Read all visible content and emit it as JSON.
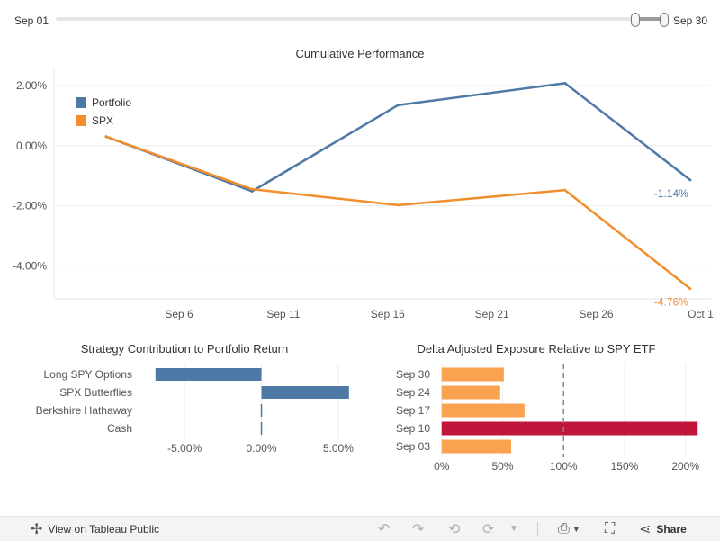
{
  "date_filter": {
    "start_label": "Sep 01",
    "end_label": "Sep 30"
  },
  "colors": {
    "portfolio": "#4e79a7",
    "spx": "#f28e2b",
    "crimson": "#c0163b",
    "light_orange": "#f9a24f"
  },
  "chart_data": [
    {
      "type": "line",
      "title": "Cumulative Performance",
      "x_ticks": [
        "Sep 6",
        "Sep 11",
        "Sep 16",
        "Sep 21",
        "Sep 26",
        "Oct 1"
      ],
      "y_ticks": [
        "2.00%",
        "0.00%",
        "-2.00%",
        "-4.00%"
      ],
      "ylim": [
        -5.1,
        2.6
      ],
      "series": [
        {
          "name": "Portfolio",
          "color": "#4e79a7",
          "x": [
            2.5,
            9.5,
            16.5,
            24.5,
            30.5
          ],
          "y": [
            0.3,
            -1.52,
            1.35,
            2.08,
            -1.14
          ],
          "end_label": "-1.14%"
        },
        {
          "name": "SPX",
          "color": "#f28e2b",
          "x": [
            2.5,
            9.5,
            16.5,
            24.5,
            30.5
          ],
          "y": [
            0.3,
            -1.45,
            -1.98,
            -1.48,
            -4.76
          ],
          "end_label": "-4.76%"
        }
      ]
    },
    {
      "type": "bar",
      "orientation": "horizontal",
      "title": "Strategy Contribution to Portfolio Return",
      "categories": [
        "Long SPY Options",
        "SPX Butterflies",
        "Berkshire Hathaway",
        "Cash"
      ],
      "values": [
        -6.9,
        5.7,
        -0.05,
        0.02
      ],
      "xlim": [
        -8,
        7
      ],
      "x_ticks": [
        "-5.00%",
        "0.00%",
        "5.00%"
      ]
    },
    {
      "type": "bar",
      "orientation": "horizontal",
      "title": "Delta Adjusted Exposure Relative to SPY ETF",
      "categories": [
        "Sep 30",
        "Sep 24",
        "Sep 17",
        "Sep 10",
        "Sep 03"
      ],
      "values": [
        51,
        48,
        68,
        210,
        57
      ],
      "highlight_category": "Sep 10",
      "reference_line": 100,
      "xlim": [
        -5,
        215
      ],
      "x_ticks": [
        "0%",
        "50%",
        "100%",
        "150%",
        "200%"
      ]
    }
  ],
  "toolbar": {
    "view_label": "View on Tableau Public",
    "share_label": "Share"
  }
}
